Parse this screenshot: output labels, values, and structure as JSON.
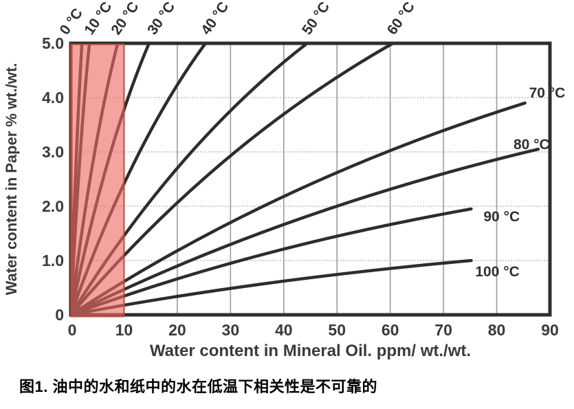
{
  "figure": {
    "caption": "图1. 油中的水和纸中的水在低温下相关性是不可靠的"
  },
  "chart_data": {
    "type": "line",
    "title": "",
    "xlabel": "Water content in Mineral Oil. ppm/ wt./wt.",
    "ylabel": "Water content in Paper % wt./wt.",
    "xlim": [
      0,
      90
    ],
    "ylim": [
      0,
      5
    ],
    "x_ticks": [
      "0",
      "10",
      "20",
      "30",
      "40",
      "50",
      "60",
      "70",
      "80",
      "90"
    ],
    "y_ticks": [
      "0",
      "1.0",
      "2.0",
      "3.0",
      "4.0",
      "5.0"
    ],
    "grid": true,
    "legend_position": "labels-on-curves",
    "series": [
      {
        "name": "0 °C",
        "label_side": "top",
        "points": [
          [
            0,
            0
          ],
          [
            1.0,
            2.8
          ],
          [
            2.1,
            5.0
          ]
        ]
      },
      {
        "name": "10 °C",
        "label_side": "top",
        "points": [
          [
            0,
            0
          ],
          [
            1.7,
            2.8
          ],
          [
            3.5,
            5.0
          ]
        ]
      },
      {
        "name": "20 °C",
        "label_side": "top",
        "points": [
          [
            0,
            0
          ],
          [
            4.2,
            2.8
          ],
          [
            8.8,
            5.0
          ]
        ]
      },
      {
        "name": "30 °C",
        "label_side": "top",
        "points": [
          [
            0,
            0
          ],
          [
            7.0,
            2.8
          ],
          [
            14.7,
            5.0
          ]
        ]
      },
      {
        "name": "40 °C",
        "label_side": "top",
        "points": [
          [
            0,
            0
          ],
          [
            12.0,
            2.8
          ],
          [
            25.3,
            5.0
          ]
        ]
      },
      {
        "name": "50 °C",
        "label_side": "top",
        "points": [
          [
            0,
            0
          ],
          [
            21.1,
            2.8
          ],
          [
            44.4,
            5.0
          ]
        ]
      },
      {
        "name": "60 °C",
        "label_side": "top",
        "points": [
          [
            0,
            0
          ],
          [
            28.7,
            2.8
          ],
          [
            60.5,
            5.0
          ]
        ]
      },
      {
        "name": "70 °C",
        "label_side": "right",
        "points": [
          [
            0,
            0
          ],
          [
            40.5,
            2.2
          ],
          [
            85.3,
            3.9
          ]
        ]
      },
      {
        "name": "80 °C",
        "label_side": "right",
        "points": [
          [
            0,
            0
          ],
          [
            41.7,
            1.7
          ],
          [
            87.8,
            3.05
          ]
        ]
      },
      {
        "name": "90 °C",
        "label_side": "right",
        "points": [
          [
            0,
            0
          ],
          [
            35.7,
            1.1
          ],
          [
            75.2,
            1.95
          ]
        ]
      },
      {
        "name": "100 °C",
        "label_side": "right",
        "points": [
          [
            0,
            0
          ],
          [
            35.7,
            0.56
          ],
          [
            75.2,
            1.0
          ]
        ]
      }
    ],
    "highlight_region": {
      "x_range": [
        0,
        10
      ],
      "fill": "#ef6b63",
      "opacity": 0.62,
      "border_color": "#b9463f"
    },
    "colors": {
      "curve": "#2d2d2d",
      "frame": "#2e2e2e",
      "grid_vertical": "#9b9b9b",
      "grid_horizontal": "#bdbdbd",
      "text": "#3a3a3a"
    }
  }
}
